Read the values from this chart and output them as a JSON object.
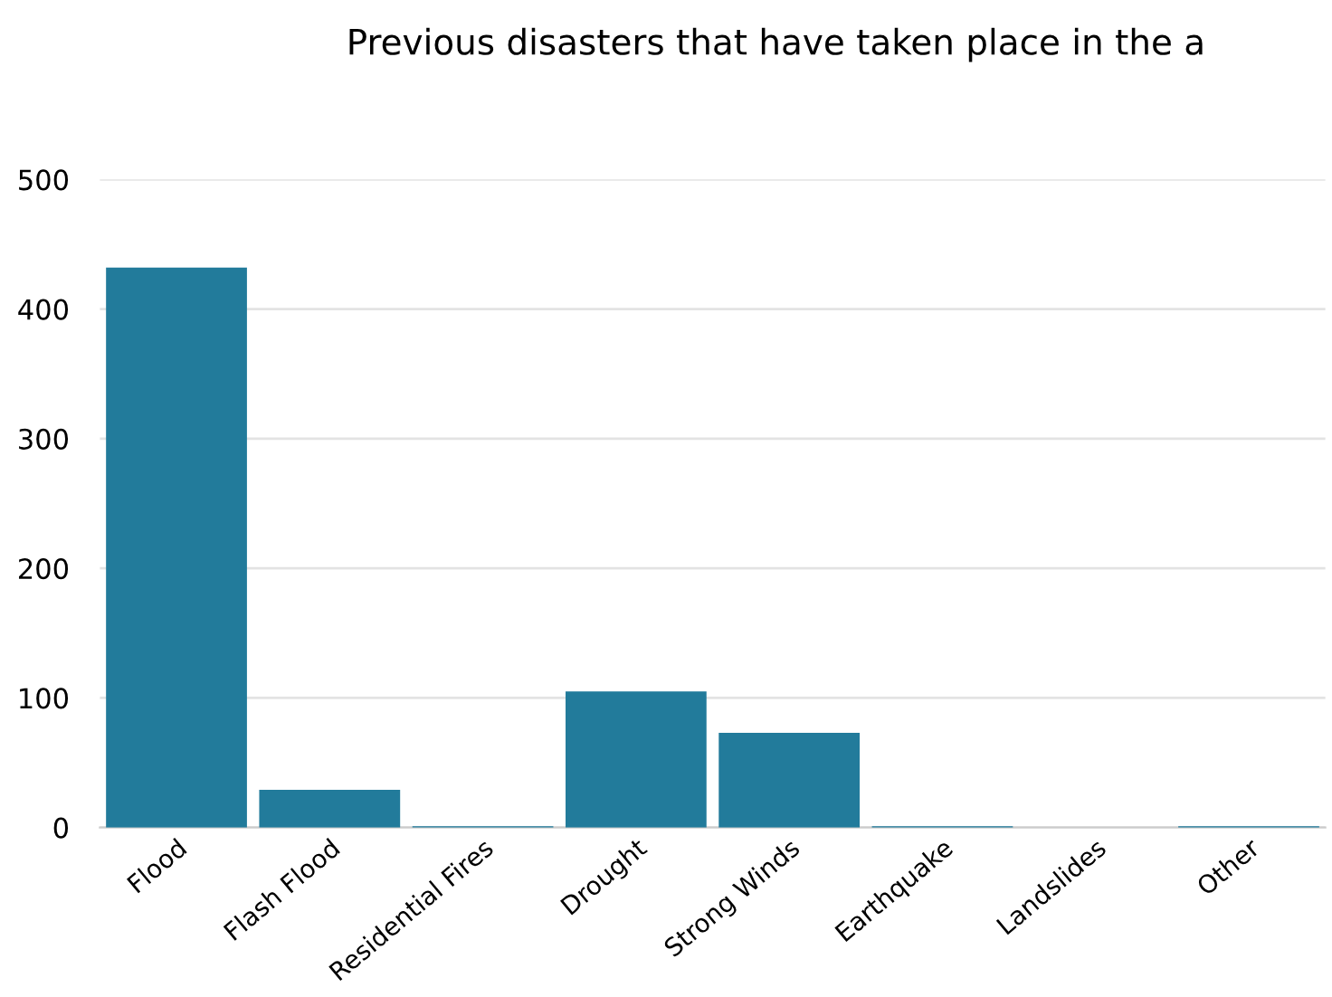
{
  "chart_data": {
    "type": "bar",
    "title": "Previous disasters that have taken place in the a",
    "categories": [
      "Flood",
      "Flash Flood",
      "Residential Fires",
      "Drought",
      "Strong Winds",
      "Earthquake",
      "Landslides",
      "Other"
    ],
    "values": [
      432,
      29,
      1,
      105,
      73,
      1,
      0,
      1
    ],
    "color": "#227b9b",
    "ylim": [
      0,
      500
    ],
    "yticks": [
      0,
      100,
      200,
      300,
      400,
      500
    ],
    "grid": "y"
  }
}
